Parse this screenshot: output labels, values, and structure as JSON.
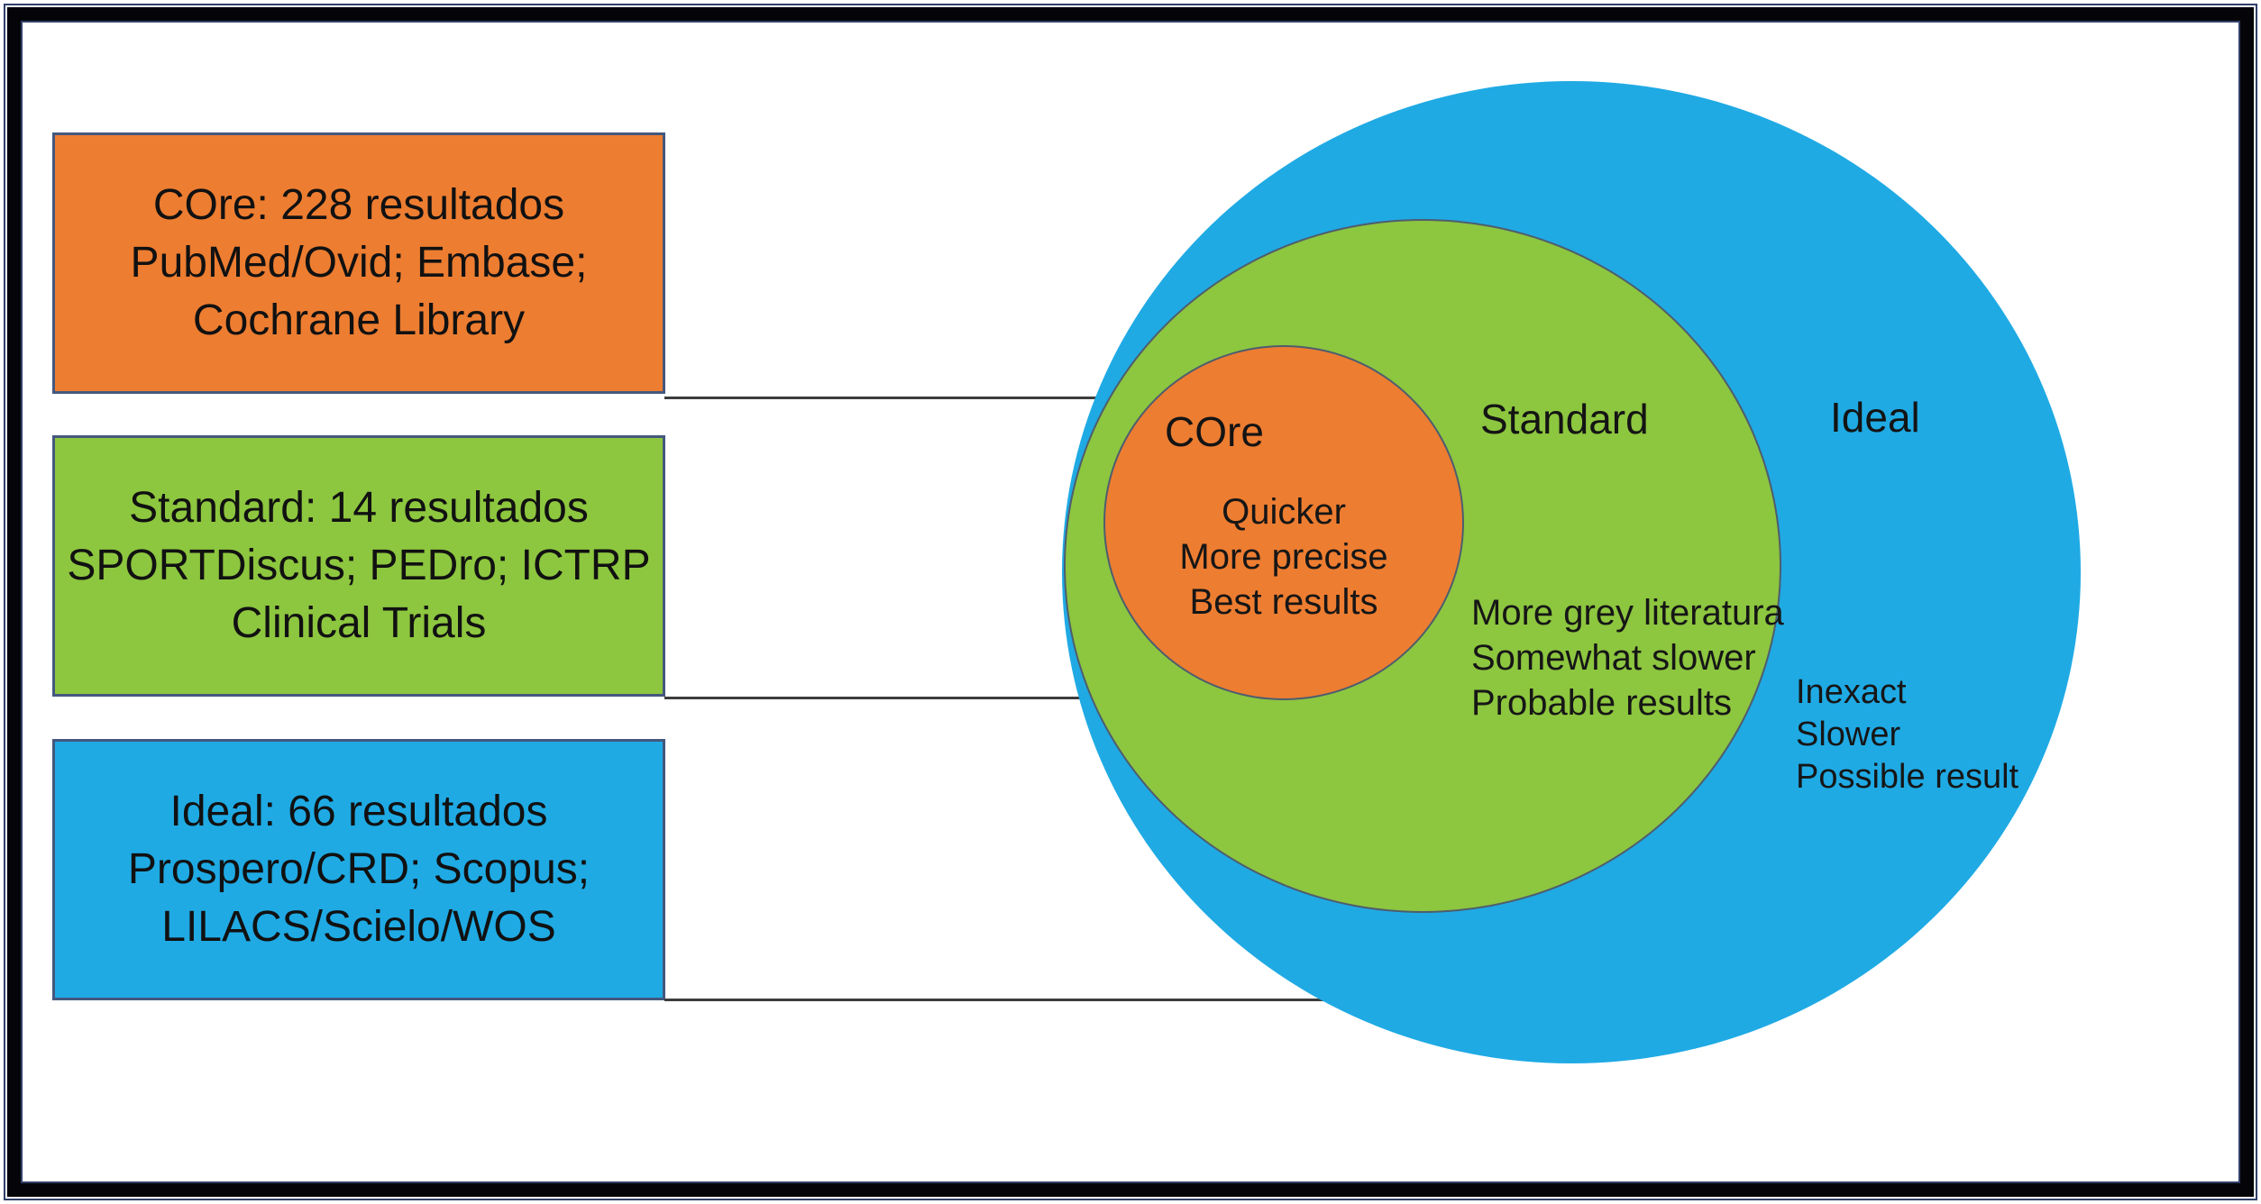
{
  "diagram_title": "",
  "palette": {
    "core_orange": "#ED7D31",
    "standard_green": "#8DC63F",
    "ideal_blue": "#1FAAE4",
    "box_border": "#44587E",
    "frame_black": "#050509",
    "arrow_gray": "#3D3D3D"
  },
  "legend_boxes": [
    {
      "id": "core",
      "lines": [
        "COre: 228 resultados",
        "PubMed/Ovid; Embase;",
        "Cochrane Library"
      ],
      "color": "#ED7D31"
    },
    {
      "id": "standard",
      "lines": [
        "Standard: 14 resultados",
        "SPORTDiscus; PEDro; ICTRP",
        "Clinical Trials"
      ],
      "color": "#8DC63F"
    },
    {
      "id": "ideal",
      "lines": [
        "Ideal: 66 resultados",
        "Prospero/CRD; Scopus;",
        "LILACS/Scielo/WOS"
      ],
      "color": "#1FAAE4"
    }
  ],
  "venn": {
    "type": "nested-circles",
    "circles": [
      {
        "id": "ideal",
        "label": "Ideal",
        "notes": [
          "Inexact",
          "Slower",
          "Possible result"
        ],
        "color": "#1FAAE4",
        "contains": "standard"
      },
      {
        "id": "standard",
        "label": "Standard",
        "notes": [
          "More grey literatura",
          "Somewhat slower",
          "Probable results"
        ],
        "color": "#8DC63F",
        "contains": "core"
      },
      {
        "id": "core",
        "label": "COre",
        "notes": [
          "Quicker",
          "More precise",
          "Best results"
        ],
        "color": "#ED7D31",
        "contains": null
      }
    ]
  },
  "arrows": [
    {
      "from": "core-box",
      "to": "core-circle"
    },
    {
      "from": "standard-box",
      "to": "standard-circle"
    },
    {
      "from": "ideal-box",
      "to": "ideal-circle"
    }
  ]
}
